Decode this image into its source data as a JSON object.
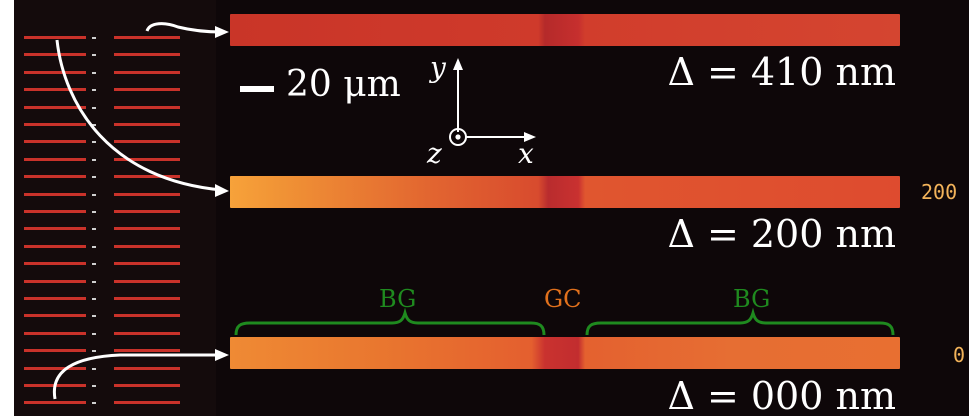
{
  "labels": {
    "scale_bar": "20 μm",
    "axis_y": "y",
    "axis_z": "z",
    "axis_x": "x",
    "delta_top": "Δ = 410 nm",
    "delta_mid": "Δ = 200 nm",
    "delta_bot": "Δ = 000 nm",
    "side_mid": "200",
    "side_bot": "0",
    "region_bg_left": "BG",
    "region_gc": "GC",
    "region_bg_right": "BG"
  },
  "colors": {
    "bg_label": "#1f8a1f",
    "gc_label": "#e0701c",
    "brace": "#1f8a1f"
  }
}
